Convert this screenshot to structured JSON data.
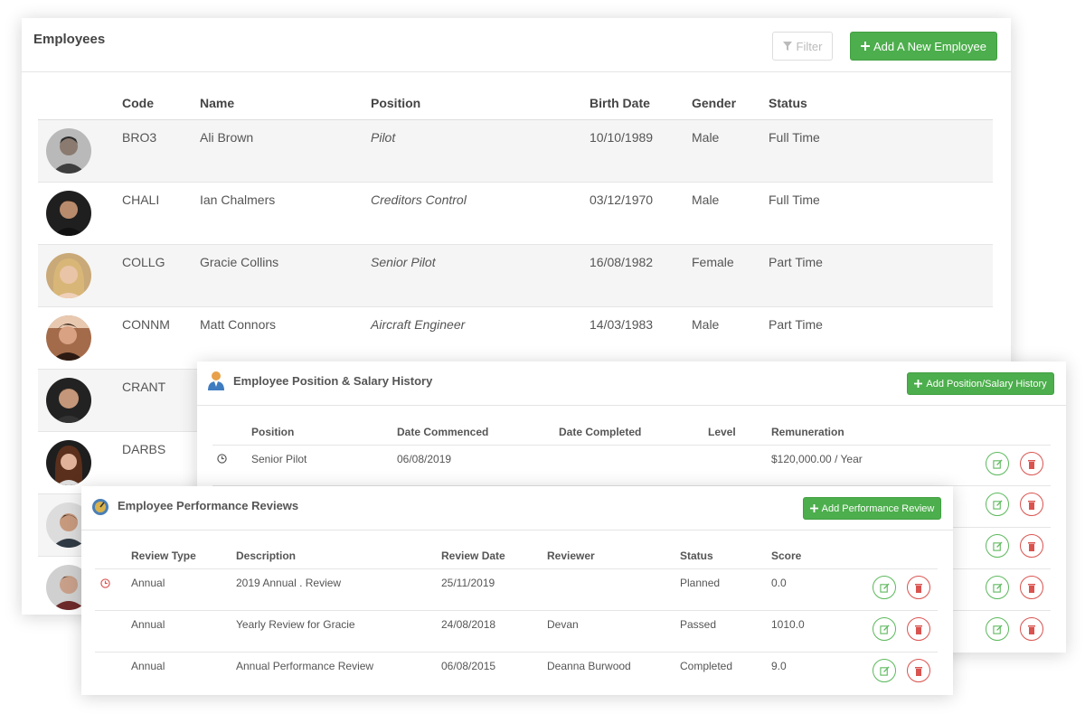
{
  "employees_panel": {
    "title": "Employees",
    "filter_label": "Filter",
    "add_label": "Add A New Employee",
    "columns": [
      "Code",
      "Name",
      "Position",
      "Birth Date",
      "Gender",
      "Status"
    ],
    "rows": [
      {
        "code": "BRO3",
        "name": "Ali Brown",
        "position": "Pilot",
        "birth_date": "10/10/1989",
        "gender": "Male",
        "status": "Full Time"
      },
      {
        "code": "CHALI",
        "name": "Ian Chalmers",
        "position": "Creditors Control",
        "birth_date": "03/12/1970",
        "gender": "Male",
        "status": "Full Time"
      },
      {
        "code": "COLLG",
        "name": "Gracie Collins",
        "position": "Senior Pilot",
        "birth_date": "16/08/1982",
        "gender": "Female",
        "status": "Part Time"
      },
      {
        "code": "CONNM",
        "name": "Matt Connors",
        "position": "Aircraft Engineer",
        "birth_date": "14/03/1983",
        "gender": "Male",
        "status": "Part Time"
      },
      {
        "code": "CRANT",
        "name": "",
        "position": "",
        "birth_date": "",
        "gender": "",
        "status": ""
      },
      {
        "code": "DARBS",
        "name": "",
        "position": "",
        "birth_date": "",
        "gender": "",
        "status": ""
      },
      {
        "code": "",
        "name": "",
        "position": "",
        "birth_date": "",
        "gender": "",
        "status": ""
      },
      {
        "code": "",
        "name": "",
        "position": "",
        "birth_date": "",
        "gender": "",
        "status": ""
      }
    ]
  },
  "salary_panel": {
    "title": "Employee Position & Salary History",
    "add_label": "Add Position/Salary History",
    "columns": [
      "Position",
      "Date Commenced",
      "Date Completed",
      "Level",
      "Remuneration"
    ],
    "rows": [
      {
        "position": "Senior Pilot",
        "date_commenced": "06/08/2019",
        "date_completed": "",
        "level": "",
        "remuneration": "$120,000.00 / Year"
      }
    ]
  },
  "reviews_panel": {
    "title": "Employee Performance Reviews",
    "add_label": "Add Performance Review",
    "columns": [
      "Review Type",
      "Description",
      "Review Date",
      "Reviewer",
      "Status",
      "Score"
    ],
    "rows": [
      {
        "type": "Annual",
        "description": "2019 Annual . Review",
        "date": "25/11/2019",
        "reviewer": "",
        "status": "Planned",
        "score": "0.0"
      },
      {
        "type": "Annual",
        "description": "Yearly Review for Gracie",
        "date": "24/08/2018",
        "reviewer": "Devan",
        "status": "Passed",
        "score": "1010.0"
      },
      {
        "type": "Annual",
        "description": "Annual Performance Review",
        "date": "06/08/2015",
        "reviewer": "Deanna Burwood",
        "status": "Completed",
        "score": "9.0"
      }
    ]
  },
  "colors": {
    "accent_green": "#4cae4c",
    "edit_green": "#5cb85c",
    "delete_red": "#d9534f",
    "row_stripe": "#f5f5f5"
  }
}
